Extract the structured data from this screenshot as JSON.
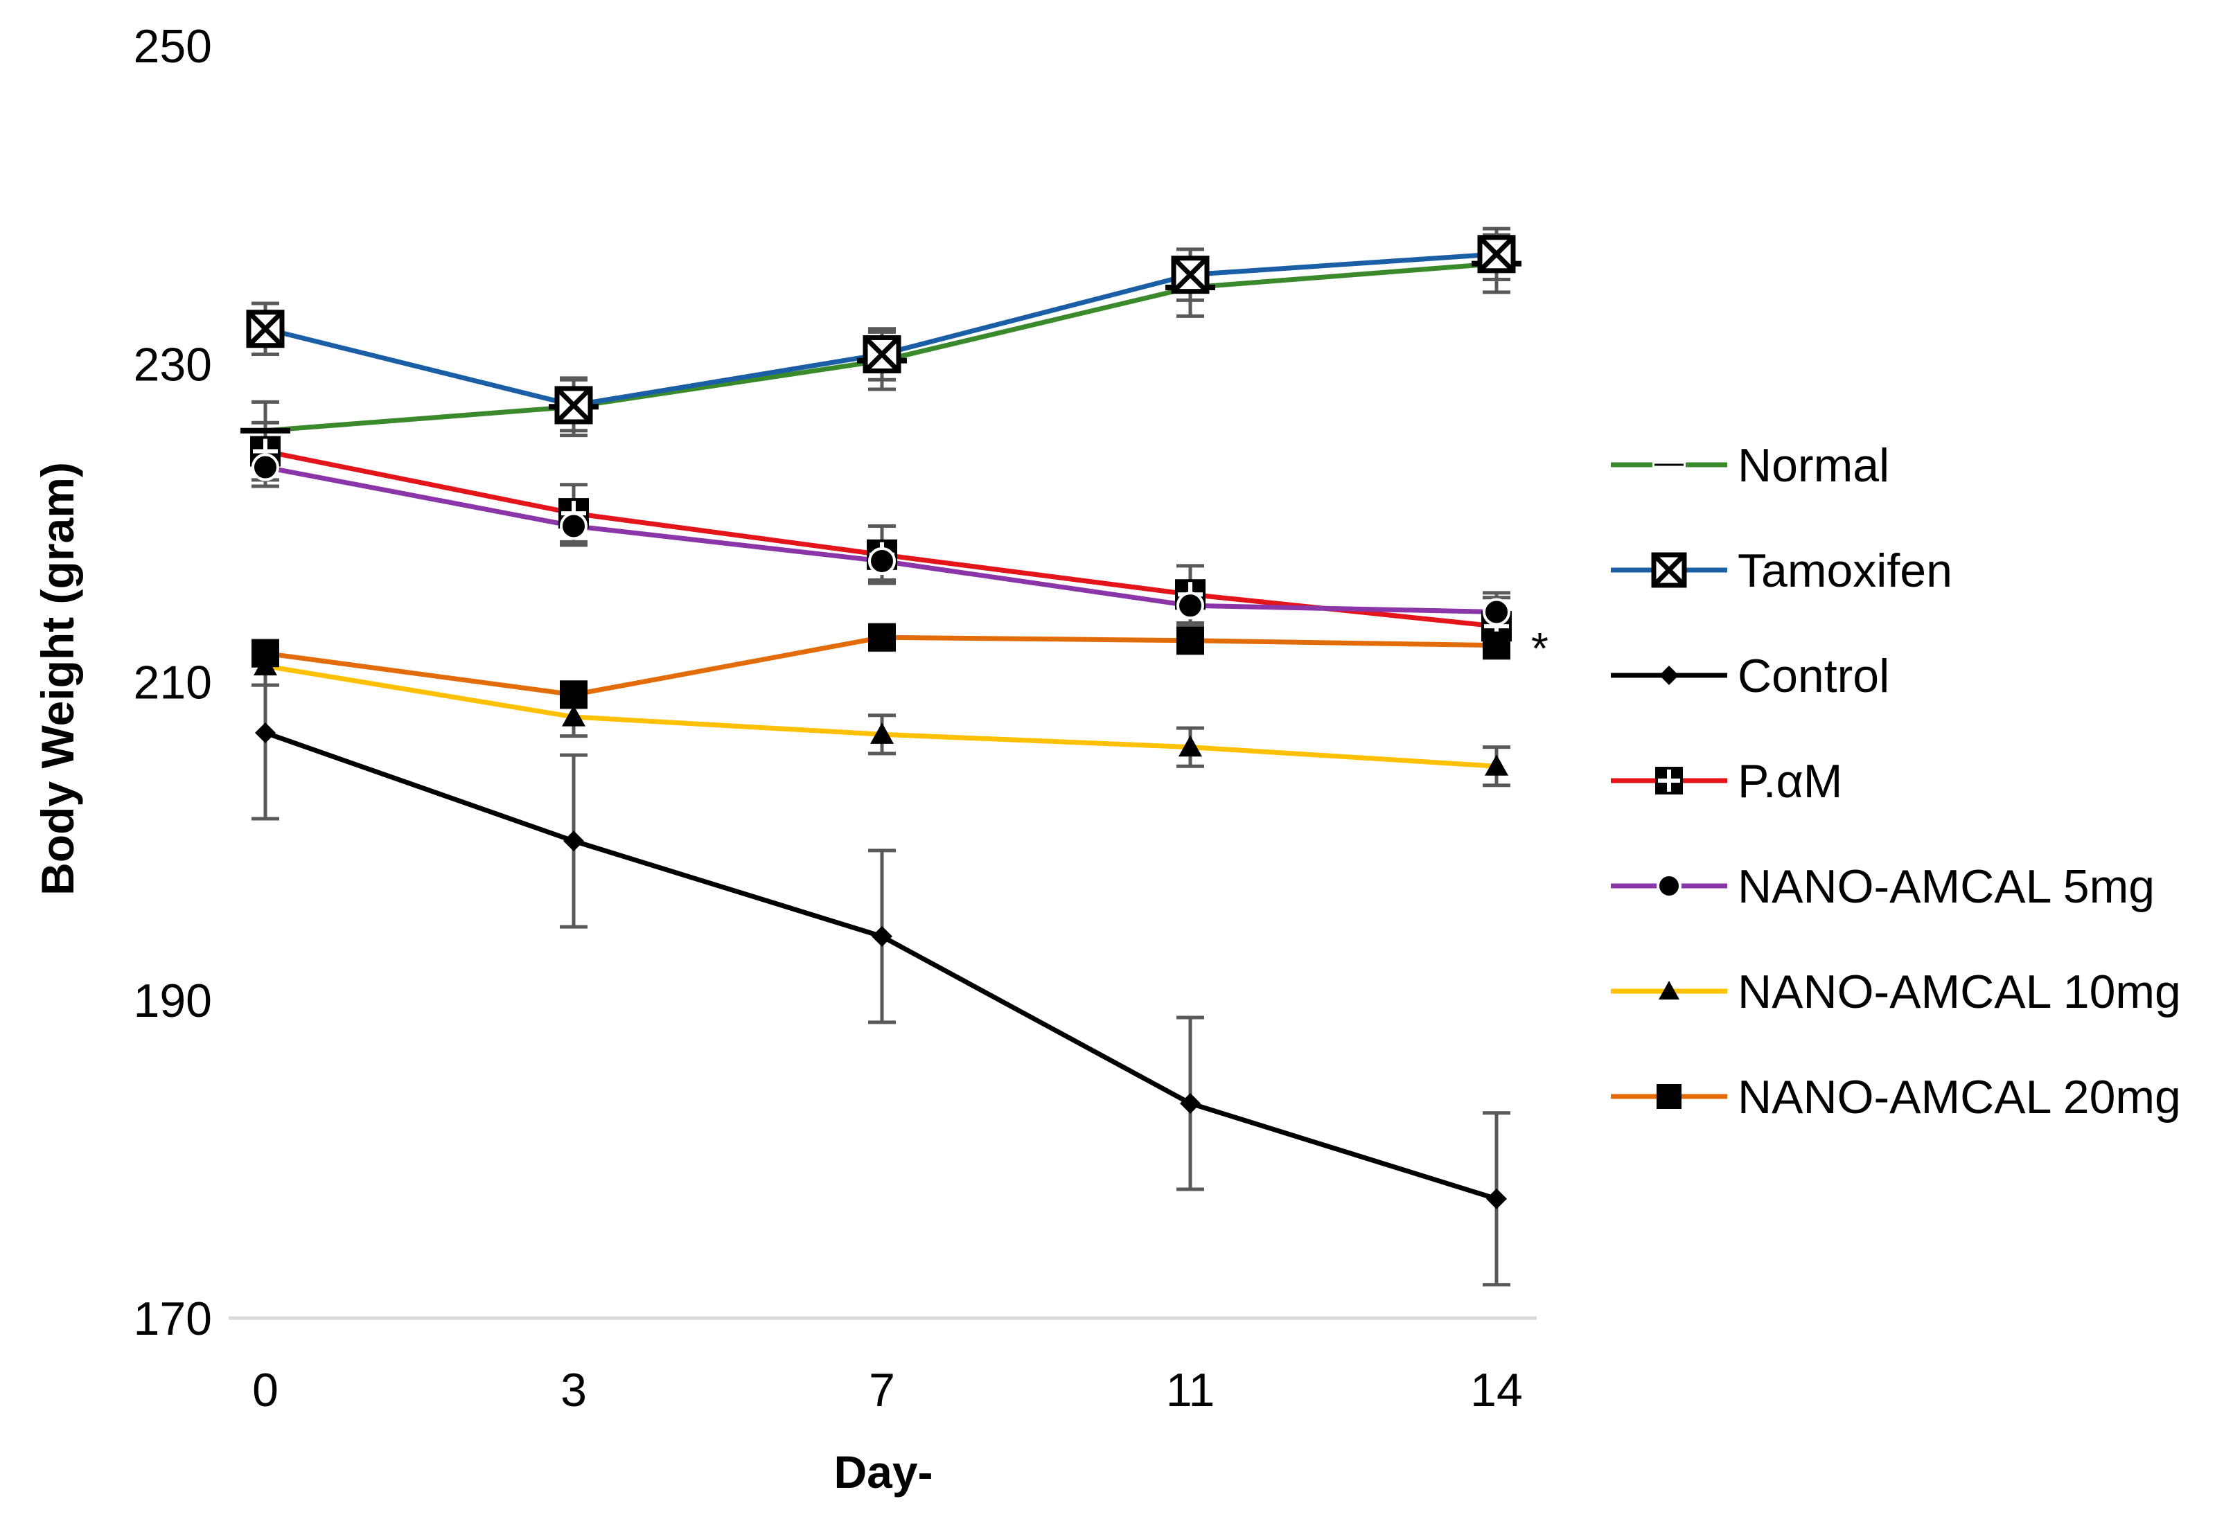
{
  "chart_data": {
    "type": "line",
    "xlabel": "Day-",
    "ylabel": "Body Weight  (gram)",
    "x": [
      0,
      3,
      7,
      11,
      14
    ],
    "x_tick_labels": [
      "0",
      "3",
      "7",
      "11",
      "14"
    ],
    "ylim": [
      170,
      250
    ],
    "y_ticks": [
      170,
      190,
      210,
      230,
      250
    ],
    "y_tick_labels": [
      "170",
      "190",
      "210",
      "230",
      "250"
    ],
    "grid": false,
    "legend_position": "right",
    "annotation": "*",
    "series": [
      {
        "name": "Normal",
        "color": "#3A8A2C",
        "marker": "dash",
        "values": [
          225.8,
          227.3,
          230.2,
          234.8,
          236.3
        ],
        "errors": [
          1.8,
          1.8,
          1.8,
          1.8,
          1.8
        ]
      },
      {
        "name": "Tamoxifen",
        "color": "#1A5FA6",
        "marker": "x-square",
        "values": [
          232.2,
          227.4,
          230.6,
          235.6,
          236.9
        ],
        "errors": [
          1.6,
          1.6,
          1.6,
          1.6,
          1.6
        ]
      },
      {
        "name": "Control",
        "color": "#000000",
        "marker": "diamond",
        "values": [
          206.8,
          200.0,
          194.0,
          183.5,
          177.5
        ],
        "errors": [
          5.4,
          5.4,
          5.4,
          5.4,
          5.4
        ]
      },
      {
        "name": "P.αM",
        "color": "#E3151B",
        "marker": "plus-square",
        "values": [
          224.5,
          220.6,
          218.0,
          215.5,
          213.5
        ],
        "errors": [
          1.8,
          1.8,
          1.8,
          1.8,
          1.8
        ]
      },
      {
        "name": "NANO-AMCAL 5mg",
        "color": "#8A35A8",
        "marker": "circle",
        "values": [
          223.5,
          219.8,
          217.6,
          214.8,
          214.4
        ],
        "errors": [
          1.2,
          1.2,
          1.2,
          1.2,
          1.2
        ]
      },
      {
        "name": "NANO-AMCAL 10mg",
        "color": "#FFC000",
        "marker": "triangle",
        "values": [
          211.0,
          207.8,
          206.7,
          205.9,
          204.7
        ],
        "errors": [
          1.2,
          1.2,
          1.2,
          1.2,
          1.2
        ]
      },
      {
        "name": "NANO-AMCAL 20mg",
        "color": "#E36C0A",
        "marker": "square",
        "values": [
          211.8,
          209.2,
          212.8,
          212.6,
          212.3
        ],
        "errors": [
          0.8,
          0.8,
          0.8,
          0.8,
          0.8
        ]
      }
    ]
  }
}
